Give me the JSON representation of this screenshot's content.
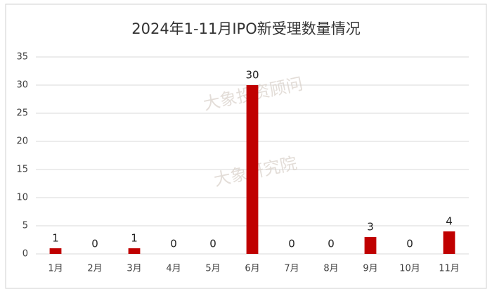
{
  "chart_data": {
    "type": "bar",
    "title": "2024年1-11月IPO新受理数量情况",
    "categories": [
      "1月",
      "2月",
      "3月",
      "4月",
      "5月",
      "6月",
      "7月",
      "8月",
      "9月",
      "10月",
      "11月"
    ],
    "values": [
      1,
      0,
      1,
      0,
      0,
      30,
      0,
      0,
      3,
      0,
      4
    ],
    "color": "#c00000",
    "ylim": [
      0,
      35
    ],
    "yticks": [
      0,
      5,
      10,
      15,
      20,
      25,
      30,
      35
    ],
    "grid": true,
    "watermarks": [
      "大象投资顾问",
      "大象研究院"
    ]
  }
}
